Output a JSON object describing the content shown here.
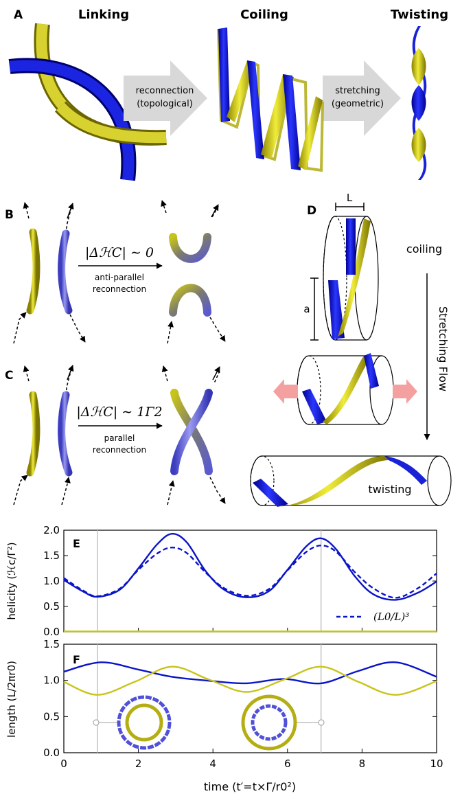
{
  "panels": {
    "A": {
      "letter": "A",
      "stage_linking": "Linking",
      "stage_coiling": "Coiling",
      "stage_twisting": "Twisting",
      "arrow1_line1": "reconnection",
      "arrow1_line2": "(topological)",
      "arrow2_line1": "stretching",
      "arrow2_line2": "(geometric)"
    },
    "B": {
      "letter": "B",
      "equation_core": "|ΔℋC| ∼ 0",
      "label_line1": "anti-parallel",
      "label_line2": "reconnection"
    },
    "C": {
      "letter": "C",
      "equation_core": "|ΔℋC| ∼ 1Γ2",
      "label_line1": "parallel",
      "label_line2": "reconnection"
    },
    "D": {
      "letter": "D",
      "length_label": "L",
      "radius_label": "a",
      "coiling_label": "coiling",
      "twisting_label": "twisting",
      "flow_label": "Stretching Flow"
    }
  },
  "colors": {
    "blue": "#0a14c8",
    "yellow": "#c8c41a",
    "light_blue": "#6a6ae0",
    "grey": "#d0d0d0",
    "pink": "#f4a0a0"
  },
  "chart_data": [
    {
      "panel": "E",
      "type": "line",
      "ylabel": "helicity (ℋc/Γ²)",
      "xlim": [
        0,
        10
      ],
      "ylim": [
        0,
        2
      ],
      "yticks": [
        "0.0",
        "0.5",
        "1.0",
        "1.5",
        "2.0"
      ],
      "vlines_x": [
        0.9,
        6.9
      ],
      "legend": {
        "label": "(L0/L)³",
        "position": "lower-right"
      },
      "series": [
        {
          "style": "solid",
          "color": "#0a14c8",
          "x": [
            0,
            0.5,
            0.9,
            1.5,
            2.0,
            2.5,
            2.9,
            3.3,
            3.8,
            4.3,
            4.9,
            5.5,
            6.0,
            6.5,
            6.9,
            7.3,
            7.8,
            8.3,
            8.9,
            9.5,
            10
          ],
          "y": [
            1.02,
            0.8,
            0.69,
            0.83,
            1.25,
            1.72,
            1.93,
            1.76,
            1.2,
            0.83,
            0.68,
            0.8,
            1.22,
            1.68,
            1.84,
            1.63,
            1.1,
            0.74,
            0.63,
            0.77,
            0.99
          ]
        },
        {
          "style": "dashed",
          "color": "#0a14c8",
          "x": [
            0,
            0.5,
            0.9,
            1.5,
            2.0,
            2.5,
            2.9,
            3.3,
            3.8,
            4.3,
            4.9,
            5.5,
            6.0,
            6.5,
            6.9,
            7.3,
            7.8,
            8.3,
            8.9,
            9.5,
            10
          ],
          "y": [
            1.06,
            0.82,
            0.7,
            0.85,
            1.22,
            1.54,
            1.66,
            1.55,
            1.17,
            0.86,
            0.71,
            0.84,
            1.21,
            1.57,
            1.7,
            1.58,
            1.18,
            0.86,
            0.67,
            0.86,
            1.15
          ]
        },
        {
          "style": "solid",
          "color": "#c8c41a",
          "x": [
            0,
            10
          ],
          "y": [
            0.01,
            0.01
          ]
        }
      ]
    },
    {
      "panel": "F",
      "type": "line",
      "ylabel": "length (L/2πr0)",
      "xlabel": "time (t′=t×Γ/r0²)",
      "xlim": [
        0,
        10
      ],
      "ylim": [
        0,
        1.5
      ],
      "xticks": [
        "0",
        "2",
        "4",
        "6",
        "8",
        "10"
      ],
      "yticks": [
        "0.0",
        "0.5",
        "1.0",
        "1.5"
      ],
      "vlines_x": [
        0.9,
        6.9
      ],
      "series": [
        {
          "style": "solid",
          "color": "#0a14c8",
          "x": [
            0,
            1.0,
            2.0,
            2.9,
            4.0,
            4.9,
            5.9,
            6.9,
            7.9,
            8.9,
            10
          ],
          "y": [
            1.12,
            1.25,
            1.15,
            1.05,
            0.99,
            0.96,
            1.02,
            0.96,
            1.13,
            1.25,
            1.05
          ]
        },
        {
          "style": "solid",
          "color": "#c8c41a",
          "x": [
            0,
            0.9,
            1.9,
            2.9,
            3.9,
            4.9,
            5.9,
            6.9,
            7.9,
            8.9,
            10
          ],
          "y": [
            0.98,
            0.8,
            0.98,
            1.19,
            1.01,
            0.84,
            1.01,
            1.19,
            0.98,
            0.8,
            0.99
          ]
        }
      ]
    }
  ]
}
